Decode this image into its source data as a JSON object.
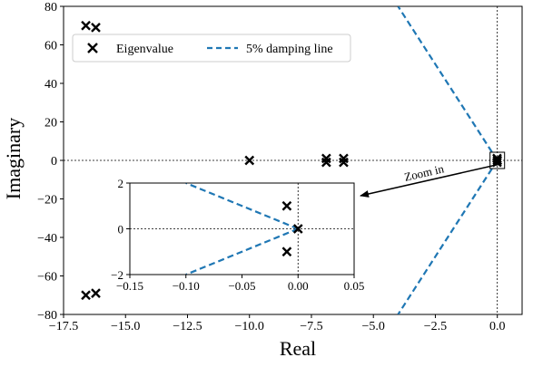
{
  "chart_data": {
    "type": "scatter",
    "xlabel": "Real",
    "ylabel": "Imaginary",
    "xlim": [
      -17.5,
      1.0
    ],
    "ylim": [
      -80,
      80
    ],
    "xticks": [
      "−17.5",
      "−15.0",
      "−12.5",
      "−10.0",
      "−7.5",
      "−5.0",
      "−2.5",
      "0.0"
    ],
    "xtick_values": [
      -17.5,
      -15.0,
      -12.5,
      -10.0,
      -7.5,
      -5.0,
      -2.5,
      0.0
    ],
    "yticks": [
      "−80",
      "−60",
      "−40",
      "−20",
      "0",
      "20",
      "40",
      "60",
      "80"
    ],
    "ytick_values": [
      -80,
      -60,
      -40,
      -20,
      0,
      20,
      40,
      60,
      80
    ],
    "legend": {
      "placement": "upper-left",
      "entries": [
        {
          "label": "Eigenvalue",
          "marker": "x",
          "color": "#000000"
        },
        {
          "label": "5% damping line",
          "style": "dashed",
          "color": "#1f77b4"
        }
      ]
    },
    "series": [
      {
        "name": "Eigenvalue",
        "points": [
          [
            -16.6,
            70
          ],
          [
            -16.2,
            69
          ],
          [
            -16.6,
            -70
          ],
          [
            -16.2,
            -69
          ],
          [
            -10.0,
            0
          ],
          [
            -6.9,
            1
          ],
          [
            -6.9,
            -1
          ],
          [
            -6.2,
            1
          ],
          [
            -6.2,
            -1
          ],
          [
            -0.01,
            1
          ],
          [
            -0.01,
            -1
          ],
          [
            0.0,
            0
          ]
        ]
      },
      {
        "name": "5% damping line",
        "damping_ratio": 0.05,
        "upper": [
          [
            0,
            0
          ],
          [
            -4,
            79.9
          ]
        ],
        "lower": [
          [
            0,
            0
          ],
          [
            -4,
            -79.9
          ]
        ]
      }
    ],
    "annotation": {
      "text": "Zoom in"
    },
    "inset": {
      "xlim": [
        -0.15,
        0.05
      ],
      "ylim": [
        -2,
        2
      ],
      "xticks": [
        "−0.15",
        "−0.10",
        "−0.05",
        "0.00",
        "0.05"
      ],
      "xtick_values": [
        -0.15,
        -0.1,
        -0.05,
        0.0,
        0.05
      ],
      "yticks": [
        "−2",
        "0",
        "2"
      ],
      "ytick_values": [
        -2,
        0,
        2
      ],
      "eigenvalues": [
        [
          -0.01,
          1
        ],
        [
          -0.01,
          -1
        ],
        [
          0.0,
          0
        ]
      ],
      "damping_upper": [
        [
          0,
          0
        ],
        [
          -0.1,
          2
        ]
      ],
      "damping_lower": [
        [
          0,
          0
        ],
        [
          -0.1,
          -2
        ]
      ]
    },
    "grid": false
  }
}
